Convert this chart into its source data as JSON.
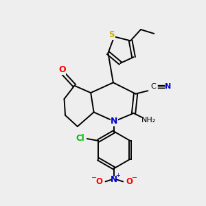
{
  "bg_color": "#eeeeee",
  "bond_color": "#000000",
  "atom_colors": {
    "N": "#0000cc",
    "O": "#ff0000",
    "S": "#ccaa00",
    "Cl": "#00bb00",
    "CN_C": "#000000",
    "CN_N": "#0000cc",
    "NH2": "#000000",
    "NO2_N": "#0000cc",
    "NO2_O": "#ff0000"
  },
  "figsize": [
    3.0,
    3.0
  ],
  "dpi": 100
}
